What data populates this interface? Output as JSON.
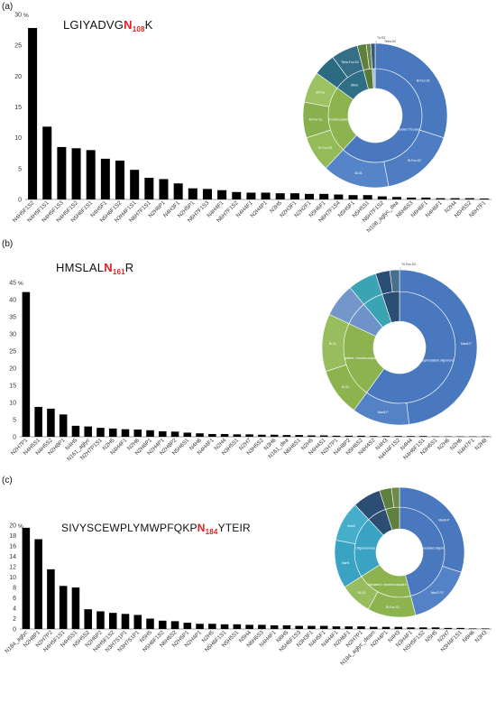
{
  "panels": [
    {
      "letter": "(a)",
      "peptide": {
        "pre": "LGIYADVG",
        "n": "N",
        "site": "108",
        "post": "K"
      },
      "y_unit": "%",
      "chart_data": {
        "type": "bar",
        "ylim": [
          0,
          30
        ],
        "yticks": [
          0,
          5,
          10,
          15,
          20,
          25,
          30
        ],
        "categories": [
          "N4H5F1S2",
          "N4H5F1S1",
          "N4H5F1S3",
          "N4H5F1S2",
          "N5H6F1S1",
          "N4H5F1",
          "N5H6F1S2",
          "N3H4F1S1",
          "N6H7F1S1",
          "N2H6P1",
          "N4H3F1",
          "N2H5P1",
          "N6H7F1S3",
          "N4H4F1",
          "N6H7F1S2",
          "N4H4F1",
          "N2H4P1",
          "N3H5",
          "N2H3F1",
          "N2H2F1",
          "N5H6F1",
          "N6H7F1S4",
          "N5H5F1",
          "N5H5S1",
          "N6H7F1S2",
          "N108_aglyc_dea",
          "N6H6S3",
          "N6H6F1",
          "N4H6F1",
          "N2H4",
          "N5H5S2",
          "N6H7F1"
        ],
        "values": [
          27.8,
          11.8,
          8.5,
          8.3,
          8.0,
          6.6,
          6.3,
          4.8,
          3.5,
          3.3,
          2.6,
          1.8,
          1.7,
          1.5,
          1.2,
          1.1,
          1.1,
          1.0,
          1.0,
          0.9,
          0.9,
          0.8,
          0.7,
          0.7,
          0.5,
          0.4,
          0.3,
          0.3,
          0.2,
          0.2,
          0.2,
          0.15
        ]
      }
    },
    {
      "letter": "(b)",
      "peptide": {
        "pre": "HMSLAL",
        "n": "N",
        "site": "161",
        "post": "R"
      },
      "y_unit": "%",
      "chart_data": {
        "type": "bar",
        "ylim": [
          0,
          45
        ],
        "yticks": [
          0,
          5,
          10,
          15,
          20,
          25,
          30,
          35,
          40,
          45
        ],
        "categories": [
          "N2H7P1",
          "N4H5S1",
          "N4H5S2",
          "N2H8P1",
          "N4H5",
          "N161_aglyc",
          "N2H7P1S1",
          "N2H5",
          "N4H4F1",
          "N2H6",
          "N2H6P1",
          "N2H4P1",
          "N2H8P2",
          "N5H6S1",
          "N4H6",
          "N4H4F1",
          "N2H4",
          "N3H5S1",
          "N2H7",
          "N3H5S2",
          "N3H6",
          "N161_dea",
          "N6H6S1",
          "N2H5",
          "N4H4S1",
          "N2H7P1",
          "N4H8P2",
          "N5H6S2",
          "N4H4S2",
          "N4H3",
          "N4H4F1S2",
          "N4H4",
          "N4H6F1S1",
          "N3H6S1",
          "N2H6",
          "N2H6",
          "N4H7F1",
          "N2H8"
        ],
        "values": [
          42.2,
          8.7,
          8.2,
          6.5,
          3.2,
          3.0,
          2.6,
          2.4,
          2.2,
          2.1,
          1.9,
          1.6,
          1.5,
          1.2,
          1.0,
          0.8,
          0.8,
          0.7,
          0.7,
          0.6,
          0.6,
          0.5,
          0.5,
          0.4,
          0.4,
          0.3,
          0.3,
          0.3,
          0.2,
          0.2,
          0.2,
          0.2,
          0.2,
          0.1,
          0.1,
          0.1,
          0.1,
          0.1
        ]
      }
    },
    {
      "letter": "(c)",
      "peptide": {
        "pre": "SIVYSCEWPLYMWPFQKP",
        "n": "N",
        "site": "184",
        "post": "YTEIR"
      },
      "y_unit": "%",
      "chart_data": {
        "type": "bar",
        "ylim": [
          0,
          20
        ],
        "yticks": [
          0,
          2,
          4,
          6,
          8,
          10,
          12,
          14,
          16,
          18,
          20
        ],
        "categories": [
          "N184_aglyc",
          "N2H8P1",
          "N2H7P2",
          "N4H5F1S1",
          "N4H5S1",
          "N5H5S2",
          "N2H6P2",
          "N4H5F1S2",
          "N3H7S1P1",
          "N3H7S1P1",
          "N5H5",
          "N5H6F1S2",
          "N6H6S2",
          "N2H5P1",
          "N2H4P1",
          "N2H5",
          "N5H6F1S1",
          "N5H5S1",
          "N5H4",
          "N6H6S3",
          "N4H4F1",
          "N6H5",
          "N5H6F1S3",
          "N3H3F1",
          "N4H5F1",
          "N4H4F1",
          "N2H6F1",
          "N2H7P1",
          "N184_aglyc_deam",
          "N2H4P1",
          "N4H3",
          "N3H4F1",
          "N5H5F1S2",
          "N5H5",
          "N2H7",
          "N3H4F1S1",
          "N6H6",
          "N3H3"
        ],
        "values": [
          19.5,
          17.3,
          11.5,
          8.3,
          8.0,
          3.8,
          3.4,
          3.1,
          2.9,
          2.7,
          2.0,
          1.6,
          1.5,
          1.2,
          1.0,
          1.0,
          0.9,
          0.9,
          0.8,
          0.8,
          0.7,
          0.7,
          0.6,
          0.6,
          0.6,
          0.5,
          0.5,
          0.5,
          0.4,
          0.4,
          0.4,
          0.3,
          0.3,
          0.3,
          0.2,
          0.2,
          0.1,
          0.1
        ]
      }
    }
  ],
  "sunbursts": [
    {
      "inner": [
        {
          "label": "Sialylated / fucosylated",
          "value": 0.62,
          "color": "#4a78bf"
        },
        {
          "label": "Monofucosylated",
          "value": 0.23,
          "color": "#8cb34e"
        },
        {
          "label": "Other",
          "value": 0.11,
          "color": "#2f6f86"
        },
        {
          "label": "",
          "value": 0.03,
          "color": "#5b7a3a"
        },
        {
          "label": "",
          "value": 0.01,
          "color": "#9fb8d6"
        }
      ],
      "outer": [
        {
          "label": "Bi-Fuc-S1",
          "value": 0.3,
          "color": "#4a78bf"
        },
        {
          "label": "Bi-Fuc-S2",
          "value": 0.17,
          "color": "#4e7dc4"
        },
        {
          "label": "Bi-S1",
          "value": 0.15,
          "color": "#5584c9"
        },
        {
          "label": "Tri-Fuc-S3",
          "value": 0.08,
          "color": "#93bb58"
        },
        {
          "label": "Bi-Fuc-S1",
          "value": 0.08,
          "color": "#88b04e"
        },
        {
          "label": "Bi-Fuc",
          "value": 0.07,
          "color": "#9dc264"
        },
        {
          "label": "Tri-Fuc",
          "value": 0.05,
          "color": "#2b6b82"
        },
        {
          "label": "Tetra-Fuc-S2",
          "value": 0.06,
          "color": "#346f87"
        },
        {
          "label": "",
          "value": 0.02,
          "color": "#5f7f3d"
        },
        {
          "label": "",
          "value": 0.01,
          "color": "#6c8a45"
        },
        {
          "label": "Tri-S3",
          "value": 0.01,
          "color": "#36587a"
        }
      ],
      "callouts": [
        "Tri-S3",
        "Tetra-S3"
      ]
    },
    {
      "inner": [
        {
          "label": "Phosphorylated oligomannose",
          "value": 0.6,
          "color": "#4a78bf"
        },
        {
          "label": "Sialylated / monofucosylated",
          "value": 0.22,
          "color": "#8cb34e"
        },
        {
          "label": "",
          "value": 0.07,
          "color": "#6e93c8"
        },
        {
          "label": "",
          "value": 0.06,
          "color": "#3aa3b4"
        },
        {
          "label": "",
          "value": 0.05,
          "color": "#2c4e75"
        }
      ],
      "outer": [
        {
          "label": "Man6-P",
          "value": 0.48,
          "color": "#4a78bf"
        },
        {
          "label": "Man8-P",
          "value": 0.12,
          "color": "#5482c6"
        },
        {
          "label": "Bi-S2",
          "value": 0.1,
          "color": "#8cb34e"
        },
        {
          "label": "Bi-S1",
          "value": 0.12,
          "color": "#98bd5f"
        },
        {
          "label": "",
          "value": 0.07,
          "color": "#7497cb"
        },
        {
          "label": "",
          "value": 0.06,
          "color": "#3aa3b4"
        },
        {
          "label": "",
          "value": 0.03,
          "color": "#2c4e75"
        },
        {
          "label": "",
          "value": 0.02,
          "color": "#466e8e"
        }
      ],
      "callouts": [
        "Tri-Fuc-S3"
      ]
    },
    {
      "inner": [
        {
          "label": "Phosphorylated oligomannose",
          "value": 0.46,
          "color": "#4a78bf"
        },
        {
          "label": "Sialylated / monofucosylated",
          "value": 0.2,
          "color": "#8cb34e"
        },
        {
          "label": "Oligomannose",
          "value": 0.22,
          "color": "#3aa3c4"
        },
        {
          "label": "",
          "value": 0.07,
          "color": "#2c4e75"
        },
        {
          "label": "",
          "value": 0.05,
          "color": "#5f7f3d"
        }
      ],
      "outer": [
        {
          "label": "Man8-P",
          "value": 0.3,
          "color": "#4a78bf"
        },
        {
          "label": "Man7-P2",
          "value": 0.16,
          "color": "#5482c6"
        },
        {
          "label": "Bi-Fuc-S1",
          "value": 0.12,
          "color": "#8cb34e"
        },
        {
          "label": "Bi-S1",
          "value": 0.08,
          "color": "#98bd5f"
        },
        {
          "label": "Man5",
          "value": 0.12,
          "color": "#3aa3c4"
        },
        {
          "label": "Man6",
          "value": 0.1,
          "color": "#45aecb"
        },
        {
          "label": "",
          "value": 0.07,
          "color": "#2c4e75"
        },
        {
          "label": "",
          "value": 0.03,
          "color": "#5f7f3d"
        },
        {
          "label": "",
          "value": 0.02,
          "color": "#6c8a45"
        }
      ],
      "callouts": []
    }
  ]
}
